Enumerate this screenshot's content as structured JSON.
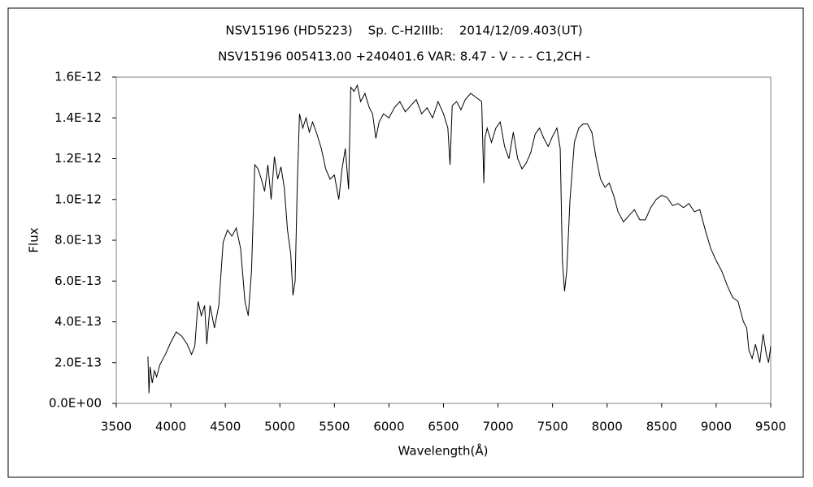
{
  "chart_data": {
    "type": "line",
    "title": "NSV15196 (HD5223)    Sp. C-H2IIIb:    2014/12/09.403(UT)",
    "subtitle": "NSV15196 005413.00 +240401.6 VAR: 8.47 - V - - - C1,2CH -",
    "x_label": "Wavelength(Å)",
    "y_label": "Flux",
    "color": "#000000",
    "xlim": [
      3500,
      9500
    ],
    "xticks": [
      3500,
      4000,
      4500,
      5000,
      5500,
      6000,
      6500,
      7000,
      7500,
      8000,
      8500,
      9000,
      9500
    ],
    "ylim": [
      0,
      1.6e-12
    ],
    "yticks": [
      {
        "value": 0,
        "label": "0.0E+00"
      },
      {
        "value": 2e-13,
        "label": "2.0E-13"
      },
      {
        "value": 4e-13,
        "label": "4.0E-13"
      },
      {
        "value": 6e-13,
        "label": "6.0E-13"
      },
      {
        "value": 8e-13,
        "label": "8.0E-13"
      },
      {
        "value": 1e-12,
        "label": "1.0E-12"
      },
      {
        "value": 1.2e-12,
        "label": "1.2E-12"
      },
      {
        "value": 1.4e-12,
        "label": "1.4E-12"
      },
      {
        "value": 1.6e-12,
        "label": "1.6E-12"
      }
    ],
    "x": [
      3790,
      3800,
      3810,
      3830,
      3850,
      3870,
      3900,
      3950,
      4000,
      4050,
      4100,
      4150,
      4190,
      4220,
      4250,
      4280,
      4310,
      4330,
      4360,
      4400,
      4440,
      4480,
      4520,
      4560,
      4600,
      4640,
      4680,
      4710,
      4740,
      4770,
      4800,
      4830,
      4860,
      4890,
      4920,
      4950,
      4980,
      5010,
      5040,
      5070,
      5100,
      5120,
      5140,
      5160,
      5180,
      5210,
      5240,
      5270,
      5300,
      5340,
      5380,
      5420,
      5460,
      5500,
      5540,
      5570,
      5600,
      5630,
      5650,
      5680,
      5710,
      5740,
      5780,
      5820,
      5850,
      5880,
      5910,
      5950,
      6000,
      6050,
      6100,
      6150,
      6200,
      6250,
      6300,
      6350,
      6400,
      6450,
      6500,
      6540,
      6560,
      6580,
      6620,
      6660,
      6700,
      6750,
      6800,
      6850,
      6870,
      6880,
      6900,
      6940,
      6980,
      7020,
      7060,
      7100,
      7140,
      7180,
      7220,
      7260,
      7300,
      7340,
      7380,
      7420,
      7460,
      7500,
      7540,
      7570,
      7590,
      7610,
      7630,
      7660,
      7700,
      7740,
      7780,
      7820,
      7860,
      7900,
      7940,
      7980,
      8020,
      8060,
      8100,
      8150,
      8200,
      8250,
      8300,
      8350,
      8400,
      8450,
      8500,
      8550,
      8600,
      8650,
      8700,
      8750,
      8800,
      8850,
      8900,
      8950,
      9000,
      9050,
      9100,
      9150,
      9200,
      9250,
      9280,
      9300,
      9330,
      9360,
      9400,
      9430,
      9460,
      9480,
      9500
    ],
    "values": [
      2.3e-13,
      5e-14,
      1.8e-13,
      1e-13,
      1.6e-13,
      1.3e-13,
      1.9e-13,
      2.4e-13,
      3e-13,
      3.5e-13,
      3.3e-13,
      2.9e-13,
      2.4e-13,
      2.8e-13,
      5e-13,
      4.3e-13,
      4.8e-13,
      2.9e-13,
      4.8e-13,
      3.7e-13,
      4.8e-13,
      7.9e-13,
      8.5e-13,
      8.2e-13,
      8.6e-13,
      7.6e-13,
      5e-13,
      4.3e-13,
      6.5e-13,
      1.17e-12,
      1.15e-12,
      1.1e-12,
      1.04e-12,
      1.17e-12,
      1e-12,
      1.21e-12,
      1.1e-12,
      1.16e-12,
      1.06e-12,
      8.5e-13,
      7.3e-13,
      5.3e-13,
      6e-13,
      1.08e-12,
      1.42e-12,
      1.35e-12,
      1.4e-12,
      1.33e-12,
      1.38e-12,
      1.32e-12,
      1.25e-12,
      1.15e-12,
      1.1e-12,
      1.12e-12,
      1e-12,
      1.15e-12,
      1.25e-12,
      1.05e-12,
      1.55e-12,
      1.53e-12,
      1.56e-12,
      1.48e-12,
      1.52e-12,
      1.45e-12,
      1.42e-12,
      1.3e-12,
      1.38e-12,
      1.42e-12,
      1.4e-12,
      1.45e-12,
      1.48e-12,
      1.43e-12,
      1.46e-12,
      1.49e-12,
      1.42e-12,
      1.45e-12,
      1.4e-12,
      1.48e-12,
      1.42e-12,
      1.35e-12,
      1.17e-12,
      1.46e-12,
      1.48e-12,
      1.44e-12,
      1.49e-12,
      1.52e-12,
      1.5e-12,
      1.48e-12,
      1.08e-12,
      1.3e-12,
      1.35e-12,
      1.28e-12,
      1.35e-12,
      1.38e-12,
      1.26e-12,
      1.2e-12,
      1.33e-12,
      1.2e-12,
      1.15e-12,
      1.18e-12,
      1.23e-12,
      1.32e-12,
      1.35e-12,
      1.3e-12,
      1.26e-12,
      1.31e-12,
      1.35e-12,
      1.25e-12,
      7e-13,
      5.5e-13,
      6.5e-13,
      1e-12,
      1.28e-12,
      1.35e-12,
      1.37e-12,
      1.37e-12,
      1.33e-12,
      1.2e-12,
      1.1e-12,
      1.06e-12,
      1.08e-12,
      1.02e-12,
      9.4e-13,
      8.9e-13,
      9.2e-13,
      9.5e-13,
      9e-13,
      9e-13,
      9.6e-13,
      1e-12,
      1.02e-12,
      1.01e-12,
      9.7e-13,
      9.8e-13,
      9.6e-13,
      9.8e-13,
      9.4e-13,
      9.5e-13,
      8.5e-13,
      7.6e-13,
      7e-13,
      6.5e-13,
      5.8e-13,
      5.2e-13,
      5e-13,
      4e-13,
      3.7e-13,
      2.6e-13,
      2.2e-13,
      2.9e-13,
      2e-13,
      3.4e-13,
      2.4e-13,
      2e-13,
      2.8e-13
    ]
  }
}
